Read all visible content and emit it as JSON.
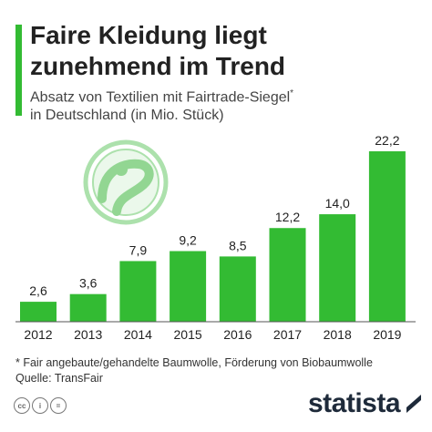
{
  "header": {
    "title_line1": "Faire Kleidung liegt",
    "title_line2": "zunehmend im Trend",
    "subtitle_line1": "Absatz von Textilien mit Fairtrade-Siegel",
    "subtitle_mark": "*",
    "subtitle_line2": "in Deutschland (in Mio. Stück)"
  },
  "chart_data": {
    "type": "bar",
    "categories": [
      "2012",
      "2013",
      "2014",
      "2015",
      "2016",
      "2017",
      "2018",
      "2019"
    ],
    "values": [
      2.6,
      3.6,
      7.9,
      9.2,
      8.5,
      12.2,
      14.0,
      22.2
    ],
    "labels": [
      "2,6",
      "3,6",
      "7,9",
      "9,2",
      "8,5",
      "12,2",
      "14,0",
      "22,2"
    ],
    "ylim": [
      0,
      22.2
    ],
    "bar_color": "#33bb33",
    "grid": false
  },
  "footer": {
    "footnote": "* Fair angebaute/gehandelte Baumwolle, Förderung von Biobaumwolle",
    "source": "Quelle: TransFair",
    "brand": "statista"
  },
  "icons": {
    "cc": "creative-commons-icon",
    "by": "attribution-icon",
    "nd": "no-derivatives-icon",
    "fairtrade": "fairtrade-logo",
    "statista": "statista-logo"
  }
}
